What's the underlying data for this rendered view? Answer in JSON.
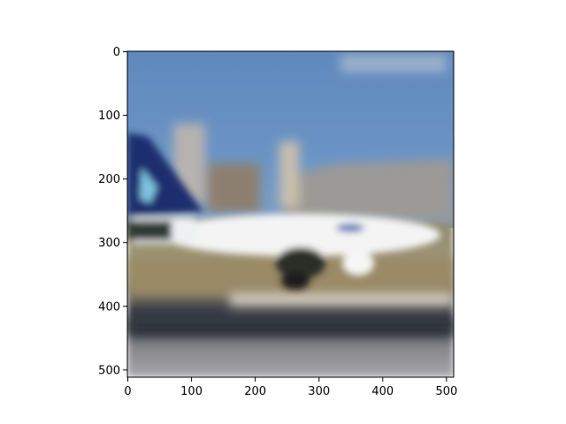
{
  "chart_data": {
    "type": "image",
    "title": "",
    "xlabel": "",
    "ylabel": "",
    "xlim": [
      0,
      512
    ],
    "ylim": [
      512,
      0
    ],
    "x_ticks": [
      0,
      100,
      200,
      300,
      400,
      500
    ],
    "y_ticks": [
      0,
      100,
      200,
      300,
      400,
      500
    ],
    "x_tick_labels": [
      "0",
      "100",
      "200",
      "300",
      "400",
      "500"
    ],
    "y_tick_labels": [
      "0",
      "100",
      "200",
      "300",
      "400",
      "500"
    ],
    "image_content": "blurred photo of a white passenger airplane with a dark blue tail on an airport runway, blue sky and buildings in the background",
    "grid": false
  }
}
